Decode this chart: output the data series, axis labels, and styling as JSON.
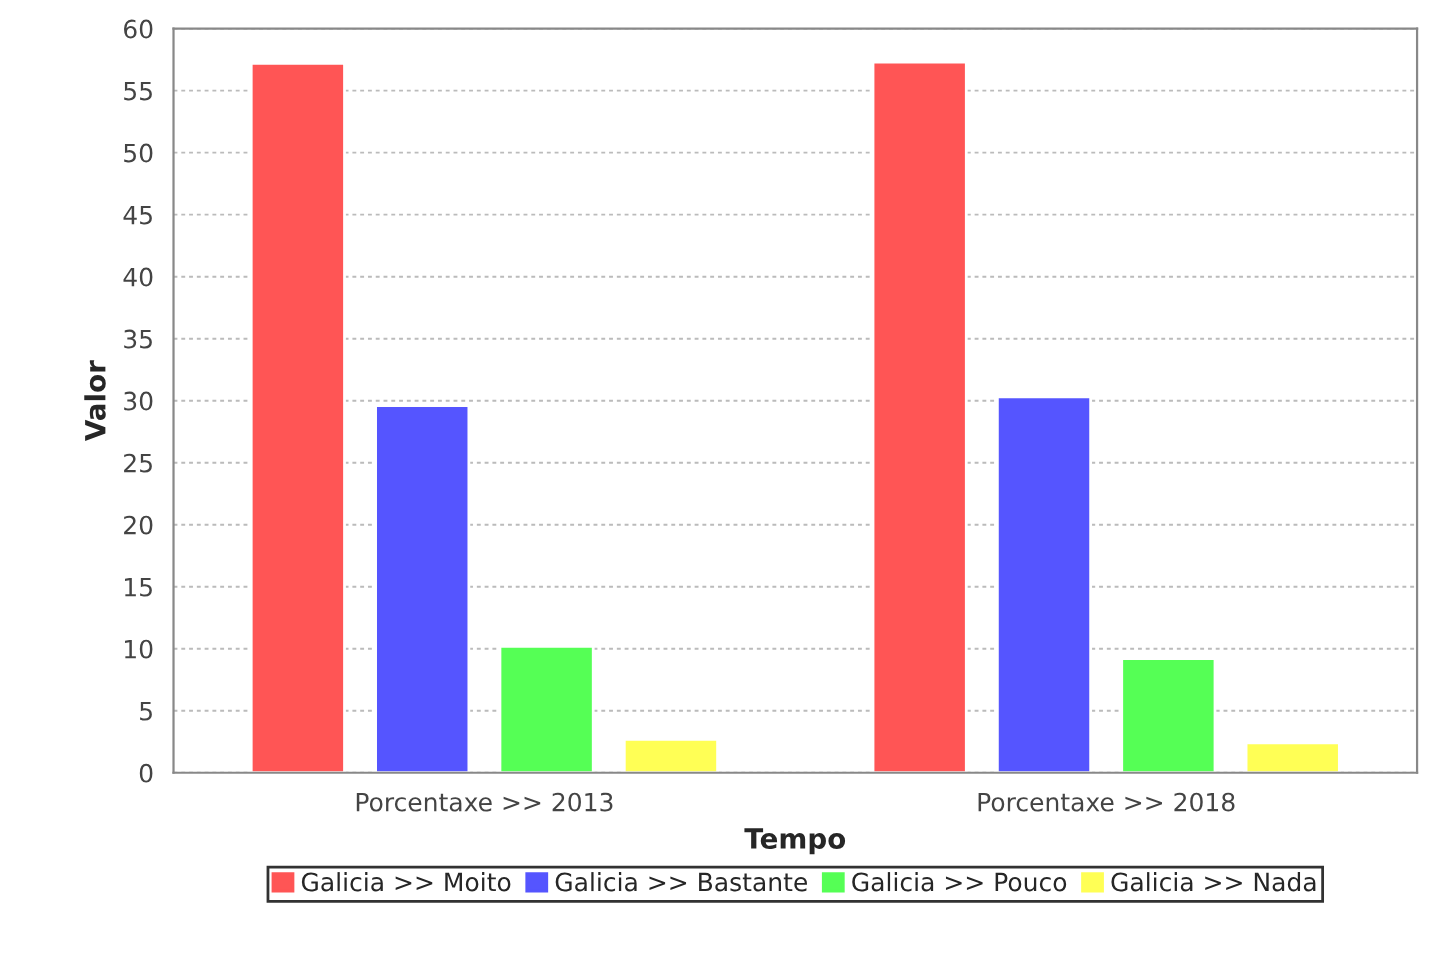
{
  "chart_data": {
    "type": "bar",
    "xlabel": "Tempo",
    "ylabel": "Valor",
    "categories": [
      "Porcentaxe >> 2013",
      "Porcentaxe >> 2018"
    ],
    "series": [
      {
        "name": "Galicia >> Moito",
        "color": "#ff5555",
        "values": [
          57.2,
          57.3
        ]
      },
      {
        "name": "Galicia >> Bastante",
        "color": "#5555ff",
        "values": [
          29.6,
          30.3
        ]
      },
      {
        "name": "Galicia >> Pouco",
        "color": "#55ff55",
        "values": [
          10.2,
          9.2
        ]
      },
      {
        "name": "Galicia >> Nada",
        "color": "#ffff55",
        "values": [
          2.7,
          2.4
        ]
      }
    ],
    "ylim": [
      0,
      60
    ],
    "yticks": [
      0,
      5,
      10,
      15,
      20,
      25,
      30,
      35,
      40,
      45,
      50,
      55,
      60
    ],
    "grid": "y",
    "legend": "bottom"
  }
}
